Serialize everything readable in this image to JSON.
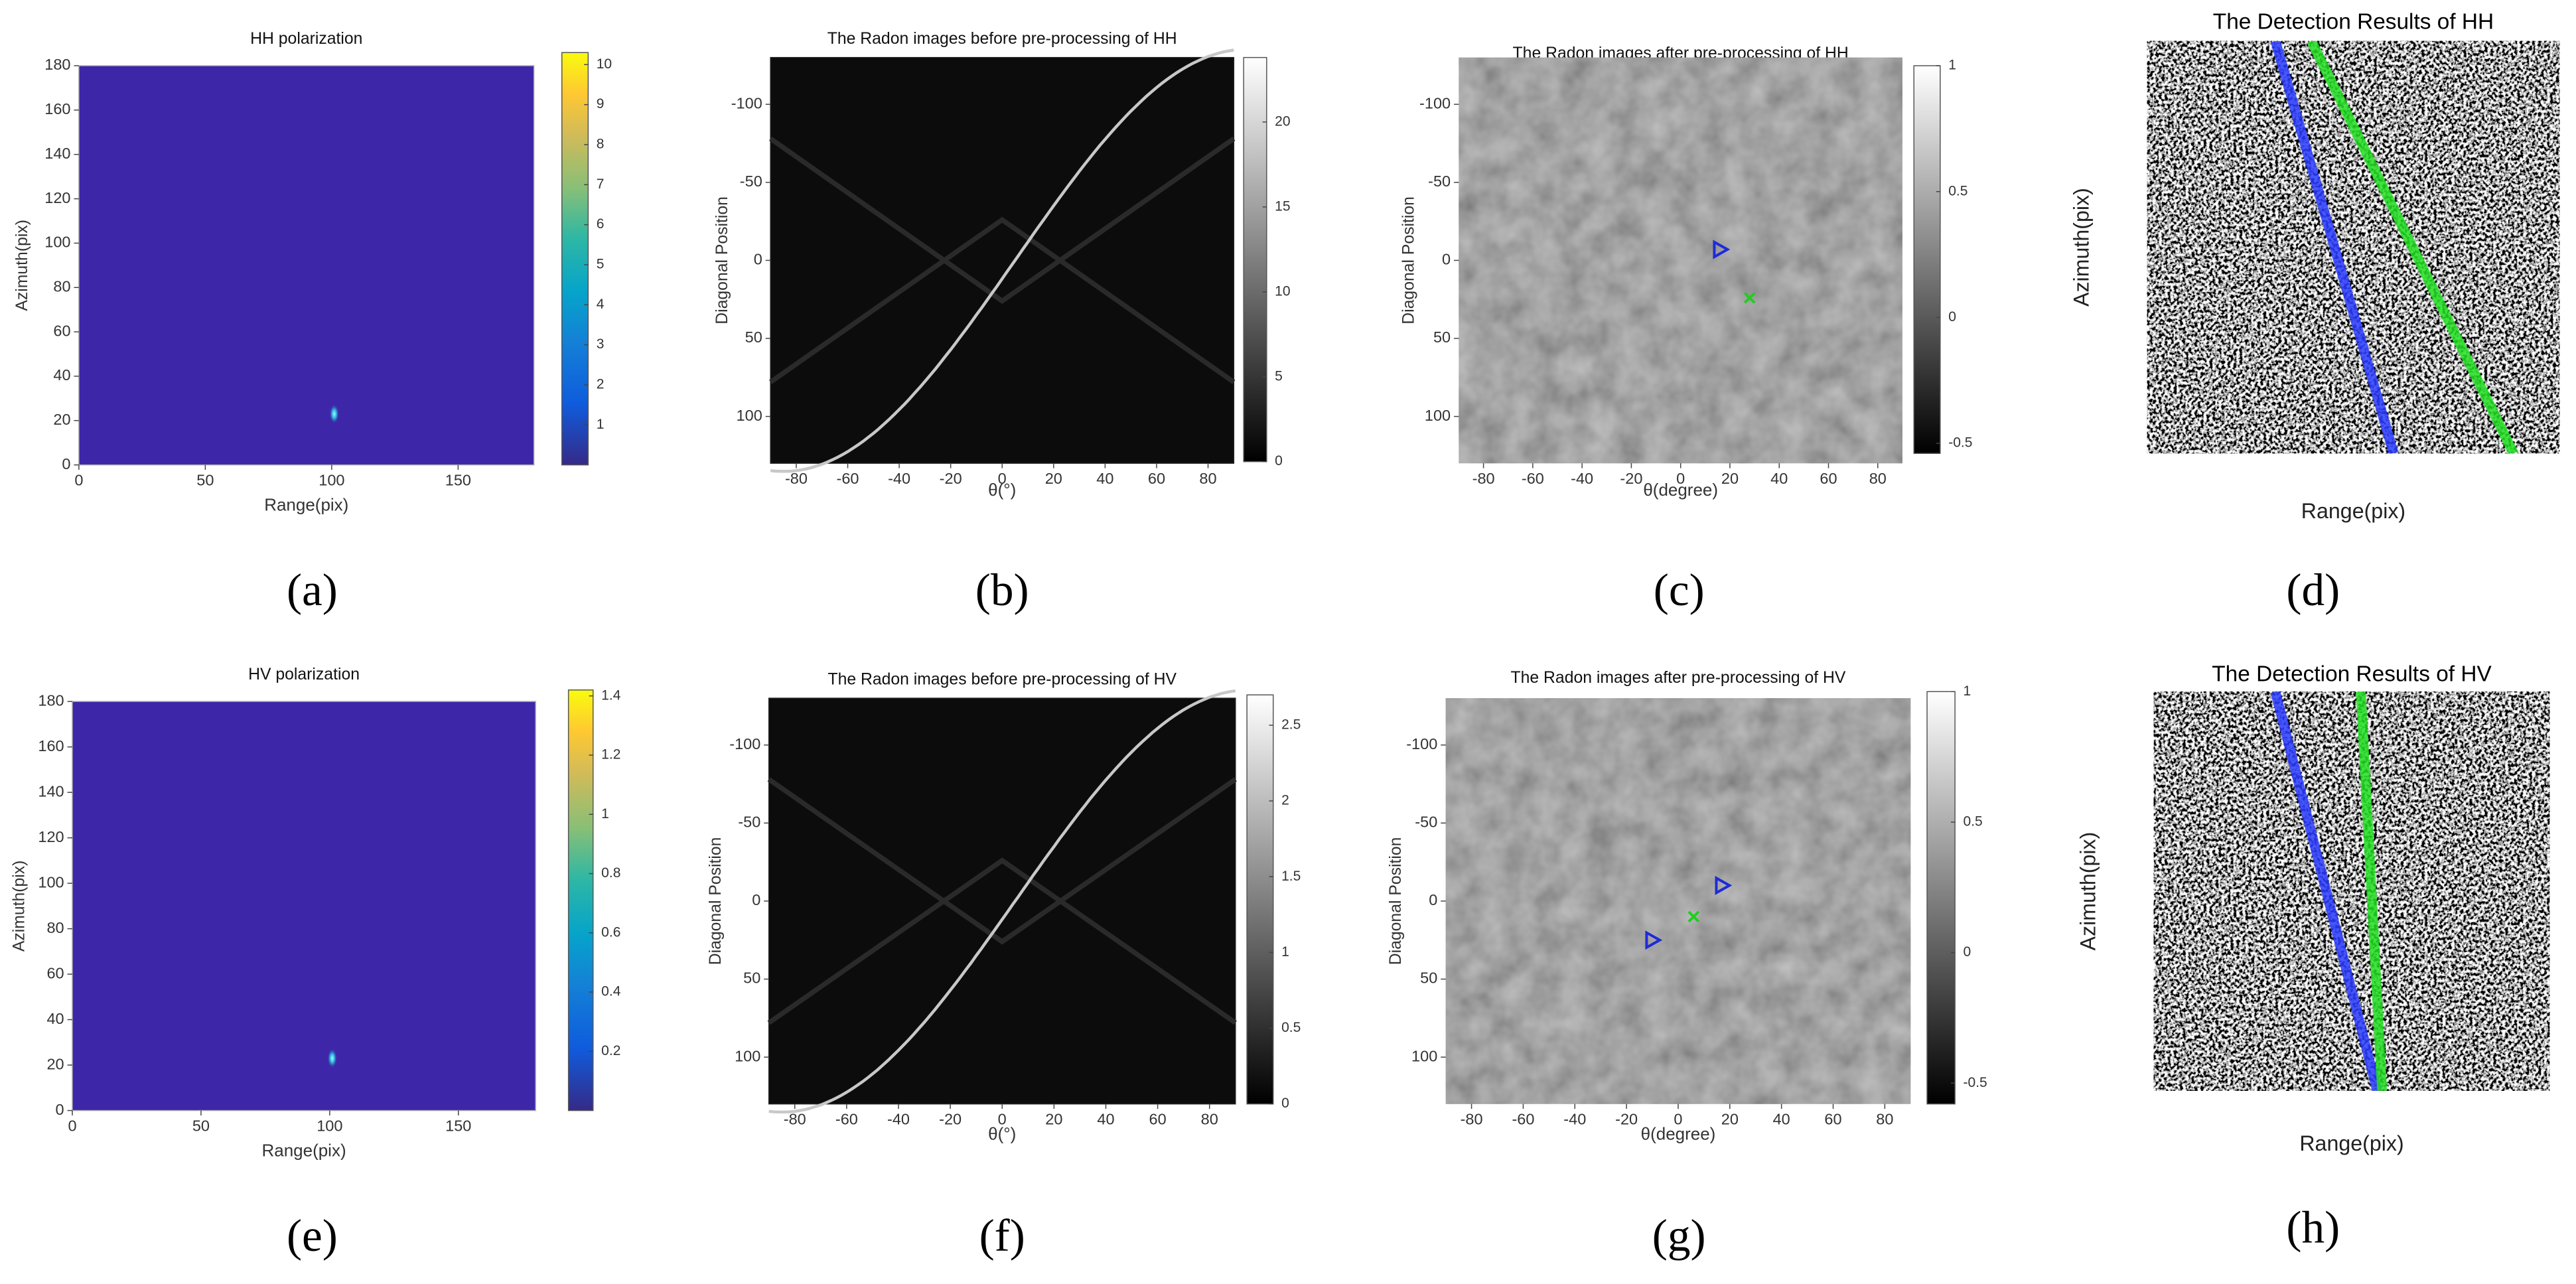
{
  "chart_data": [
    {
      "type": "heatmap",
      "title": "HH polarization",
      "xlabel": "Range(pix)",
      "ylabel": "Azimuth(pix)",
      "xlim": [
        0,
        180
      ],
      "ylim": [
        0,
        180
      ],
      "xticks": [
        0,
        50,
        100,
        150
      ],
      "yticks": [
        0,
        20,
        40,
        60,
        80,
        100,
        120,
        140,
        160,
        180
      ],
      "colormap": "parula",
      "clim": [
        0,
        10.3
      ],
      "cticks": [
        1,
        2,
        3,
        4,
        5,
        6,
        7,
        8,
        9,
        10
      ],
      "peak": {
        "x": 101,
        "y": 23
      },
      "label": "(a)"
    },
    {
      "type": "radon",
      "title": "The Radon images before pre-processing of HH",
      "xlabel": "θ(°)",
      "ylabel": "Diagonal Position",
      "xlim": [
        -90,
        90
      ],
      "ylim": [
        -130,
        130
      ],
      "yreverse": true,
      "xticks": [
        -80,
        -60,
        -40,
        -20,
        0,
        20,
        40,
        60,
        80
      ],
      "yticks": [
        -100,
        -50,
        0,
        50,
        100
      ],
      "colormap": "gray",
      "clim": [
        0,
        23.8
      ],
      "cticks": [
        0,
        5,
        10,
        15,
        20
      ],
      "label": "(b)"
    },
    {
      "type": "radon_filtered",
      "title": "The Radon images after pre-processing of HH",
      "xlabel": "θ(degree)",
      "ylabel": "Diagonal Position",
      "xlim": [
        -90,
        90
      ],
      "ylim": [
        -130,
        130
      ],
      "yreverse": true,
      "xticks": [
        -80,
        -60,
        -40,
        -20,
        0,
        20,
        40,
        60,
        80
      ],
      "yticks": [
        -100,
        -50,
        0,
        50,
        100
      ],
      "colormap": "gray",
      "clim": [
        -0.54,
        1
      ],
      "cticks": [
        -0.5,
        0,
        0.5,
        1
      ],
      "markers": [
        {
          "x": 16,
          "y": -7,
          "color": "#1f2bd6",
          "shape": "triangle"
        },
        {
          "x": 28,
          "y": 24,
          "color": "#22cc22",
          "shape": "cross"
        }
      ],
      "label": "(c)"
    },
    {
      "type": "detection",
      "title": "The Detection Results of HH",
      "xlabel": "Range(pix)",
      "ylabel": "Azimuth(pix)",
      "label": "(d)"
    },
    {
      "type": "heatmap",
      "title": "HV polarization",
      "xlabel": "Range(pix)",
      "ylabel": "Azimuth(pix)",
      "xlim": [
        0,
        180
      ],
      "ylim": [
        0,
        180
      ],
      "xticks": [
        0,
        50,
        100,
        150
      ],
      "yticks": [
        0,
        20,
        40,
        60,
        80,
        100,
        120,
        140,
        160,
        180
      ],
      "colormap": "parula",
      "clim": [
        0,
        1.42
      ],
      "cticks": [
        0.2,
        0.4,
        0.6,
        0.8,
        1,
        1.2,
        1.4
      ],
      "peak": {
        "x": 101,
        "y": 23
      },
      "label": "(e)"
    },
    {
      "type": "radon",
      "title": "The Radon images before pre-processing of HV",
      "xlabel": "θ(°)",
      "ylabel": "Diagonal Position",
      "xlim": [
        -90,
        90
      ],
      "ylim": [
        -130,
        130
      ],
      "yreverse": true,
      "xticks": [
        -80,
        -60,
        -40,
        -20,
        0,
        20,
        40,
        60,
        80
      ],
      "yticks": [
        -100,
        -50,
        0,
        50,
        100
      ],
      "colormap": "gray",
      "clim": [
        0,
        2.7
      ],
      "cticks": [
        0,
        0.5,
        1,
        1.5,
        2,
        2.5
      ],
      "label": "(f)"
    },
    {
      "type": "radon_filtered",
      "title": "The Radon images after pre-processing of HV",
      "xlabel": "θ(degree)",
      "ylabel": "Diagonal Position",
      "xlim": [
        -90,
        90
      ],
      "ylim": [
        -130,
        130
      ],
      "yreverse": true,
      "xticks": [
        -80,
        -60,
        -40,
        -20,
        0,
        20,
        40,
        60,
        80
      ],
      "yticks": [
        -100,
        -50,
        0,
        50,
        100
      ],
      "colormap": "gray",
      "clim": [
        -0.58,
        1
      ],
      "cticks": [
        -0.5,
        0,
        0.5,
        1
      ],
      "markers": [
        {
          "x": 17,
          "y": -10,
          "color": "#1f2bd6",
          "shape": "triangle"
        },
        {
          "x": -10,
          "y": 25,
          "color": "#1f2bd6",
          "shape": "triangle"
        },
        {
          "x": 6,
          "y": 10,
          "color": "#22cc22",
          "shape": "cross"
        }
      ],
      "label": "(g)"
    },
    {
      "type": "detection",
      "title": "The Detection Results of HV",
      "xlabel": "Range(pix)",
      "ylabel": "Azimuth(pix)",
      "label": "(h)"
    }
  ]
}
